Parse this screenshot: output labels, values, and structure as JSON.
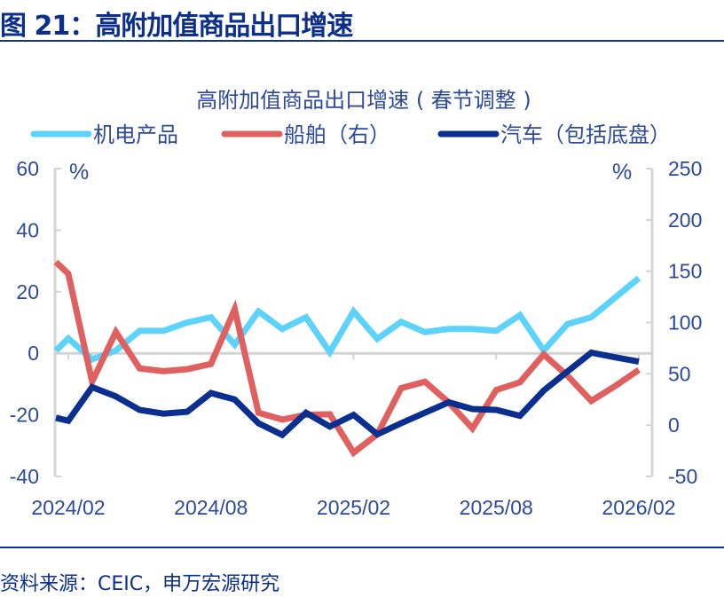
{
  "figure_title": "图 21：高附加值商品出口增速",
  "source": "资料来源：CEIC，申万宏源研究",
  "chart_data": {
    "type": "line",
    "title": "高附加值商品出口增速 ( 春节调整 )",
    "x": [
      "2024/01",
      "2024/02",
      "2024/03",
      "2024/04",
      "2024/05",
      "2024/06",
      "2024/07",
      "2024/08",
      "2024/09",
      "2024/10",
      "2024/11",
      "2024/12",
      "2025/01",
      "2025/02",
      "2025/03",
      "2025/04",
      "2025/05",
      "2025/06",
      "2025/07",
      "2025/08",
      "2025/09",
      "2025/10",
      "2025/11",
      "2025/12",
      "2026/01",
      "2026/02"
    ],
    "x_tick_labels": [
      "2024/02",
      "2024/08",
      "2025/02",
      "2025/08",
      "2026/02"
    ],
    "y_left": {
      "unit": "%",
      "range": [
        -40,
        60
      ],
      "ticks": [
        "60",
        "40",
        "20",
        "0",
        "-20",
        "-40"
      ]
    },
    "y_right": {
      "unit": "%",
      "range": [
        -50,
        250
      ],
      "ticks": [
        "250",
        "200",
        "150",
        "100",
        "50",
        "0",
        "-50"
      ]
    },
    "grid": false,
    "legend_position": "top",
    "series": [
      {
        "name": "机电产品",
        "axis": "left",
        "color": "#5dd3fb",
        "values": [
          0.9,
          4.8,
          -2.0,
          0.9,
          7.3,
          7.3,
          10.0,
          11.7,
          2.8,
          13.6,
          7.9,
          11.7,
          0.4,
          13.6,
          4.7,
          10.2,
          6.9,
          7.9,
          7.9,
          7.3,
          12.4,
          0.9,
          9.5,
          11.7,
          18.1,
          24.4
        ]
      },
      {
        "name": "船舶（右）",
        "axis": "right",
        "color": "#e05f5f",
        "values": [
          159,
          147.5,
          42.3,
          90.8,
          55.3,
          52.5,
          54.5,
          59.6,
          113,
          12.1,
          5.4,
          10.1,
          10.6,
          -26.8,
          -8.9,
          36,
          42.3,
          22.2,
          -3.2,
          34.3,
          41.7,
          68.9,
          48.1,
          23.6,
          38,
          53.8
        ]
      },
      {
        "name": "汽车（包括底盘）",
        "axis": "left",
        "color": "#0b2f8f",
        "values": [
          -21.0,
          -21.9,
          -11.0,
          -14.0,
          -18.4,
          -19.6,
          -19.0,
          -12.9,
          -15.0,
          -22.7,
          -26.5,
          -19.3,
          -23.8,
          -20.0,
          -26.3,
          -22.7,
          -19.3,
          -15.9,
          -18.1,
          -18.4,
          -20.3,
          -12.1,
          -5.9,
          0.2,
          -1.3,
          -2.7
        ]
      }
    ]
  }
}
